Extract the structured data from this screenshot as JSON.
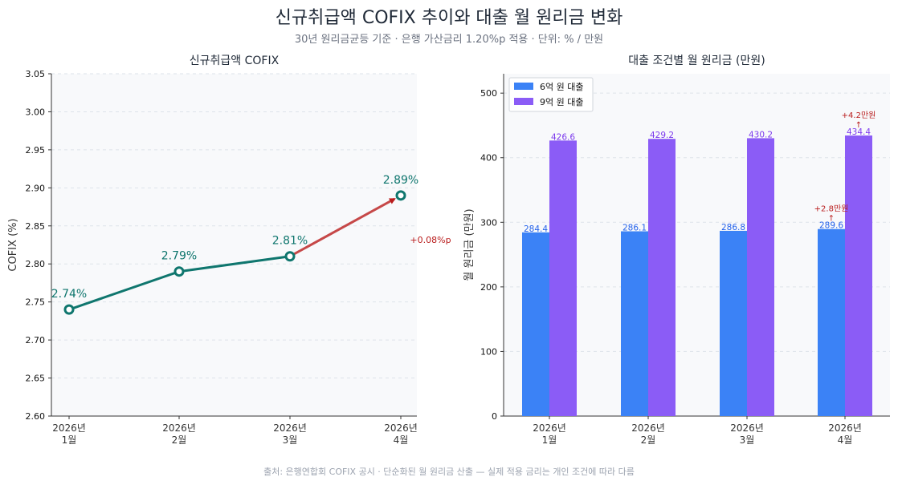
{
  "title": "신규취급액 COFIX 추이와 대출 월 원리금 변화",
  "subtitle": "30년 원리금균등 기준 · 은행 가산금리 1.20%p 적용 · 단위: % / 만원",
  "footer": "출처: 은행연합회 COFIX 공시 · 단순화된 월 원리금 산출 — 실제 적용 금리는 개인 조건에 따라 다름",
  "colors": {
    "line": "#0f766e",
    "highlight": "#b91c1c",
    "bar_6": "#3b82f6",
    "bar_9": "#8b5cf6",
    "panel_bg": "#f8f9fb",
    "grid": "#dde3ea"
  },
  "chart_data": [
    {
      "type": "line",
      "title": "신규취급액 COFIX",
      "ylabel": "COFIX (%)",
      "categories": [
        [
          "2026년",
          "1월"
        ],
        [
          "2026년",
          "2월"
        ],
        [
          "2026년",
          "3월"
        ],
        [
          "2026년",
          "4월"
        ]
      ],
      "values": [
        2.74,
        2.79,
        2.81,
        2.89
      ],
      "point_labels": [
        "2.74%",
        "2.79%",
        "2.81%",
        "2.89%"
      ],
      "ylim": [
        2.6,
        3.05
      ],
      "yticks": [
        "2.60",
        "2.65",
        "2.70",
        "2.75",
        "2.80",
        "2.85",
        "2.90",
        "2.95",
        "3.00",
        "3.05"
      ],
      "annotation": {
        "text": "+0.08%p",
        "from_index": 2,
        "to_index": 3
      },
      "grid": true
    },
    {
      "type": "bar",
      "title": "대출 조건별 월 원리금 (만원)",
      "ylabel": "월 원리금 (만원)",
      "categories": [
        [
          "2026년",
          "1월"
        ],
        [
          "2026년",
          "2월"
        ],
        [
          "2026년",
          "3월"
        ],
        [
          "2026년",
          "4월"
        ]
      ],
      "series": [
        {
          "name": "6억 원 대출",
          "values": [
            284.4,
            286.1,
            286.8,
            289.6
          ],
          "labels": [
            "284.4",
            "286.1",
            "286.8",
            "289.6"
          ]
        },
        {
          "name": "9억 원 대출",
          "values": [
            426.6,
            429.2,
            430.2,
            434.4
          ],
          "labels": [
            "426.6",
            "429.2",
            "430.2",
            "434.4"
          ]
        }
      ],
      "ylim": [
        0,
        530
      ],
      "yticks": [
        "0",
        "100",
        "200",
        "300",
        "400",
        "500"
      ],
      "annotations": [
        {
          "series": 0,
          "index": 3,
          "lines": [
            "+2.8만원",
            "↑"
          ]
        },
        {
          "series": 1,
          "index": 3,
          "lines": [
            "+4.2만원",
            "↑"
          ]
        }
      ],
      "legend": "top-left",
      "grid": true
    }
  ]
}
